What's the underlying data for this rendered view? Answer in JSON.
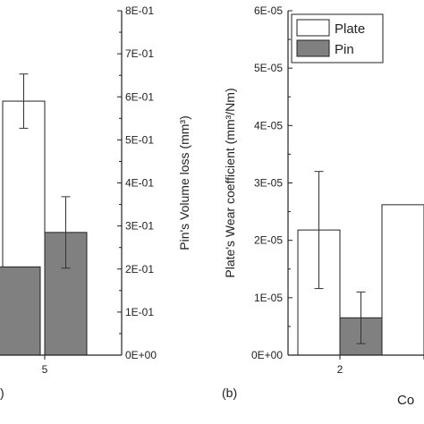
{
  "colors": {
    "plate": "#ffffff",
    "pin": "#808080",
    "axis": "#222222",
    "errbar": "#333333"
  },
  "chart_data": [
    {
      "type": "bar",
      "panel": "(a)",
      "panel_label_visible": ")",
      "categories": [
        "",
        "5"
      ],
      "series": [
        {
          "name": "Plate",
          "values": [
            null,
            0.59
          ],
          "errors": [
            null,
            0.063
          ]
        },
        {
          "name": "Pin",
          "values": [
            0.205,
            0.285
          ],
          "errors": [
            null,
            0.083
          ]
        }
      ],
      "ylabel": "Pin's Volume loss (mm³)",
      "ylim": [
        0,
        0.8
      ],
      "y_ticks": [
        "0E+00",
        "1E-01",
        "2E-01",
        "3E-01",
        "4E-01",
        "5E-01",
        "6E-01",
        "7E-01",
        "8E-01"
      ],
      "grid": false
    },
    {
      "type": "bar",
      "panel": "(b)",
      "categories": [
        "2",
        ""
      ],
      "series": [
        {
          "name": "Plate",
          "values": [
            2.18e-05,
            2.62e-05
          ],
          "errors": [
            1.02e-05,
            null
          ]
        },
        {
          "name": "Pin",
          "values": [
            6.5e-06,
            null
          ],
          "errors": [
            4.5e-06,
            null
          ]
        }
      ],
      "ylabel": "Plate's Wear coefficient (mm³/Nm)",
      "xlabel_partial": "Co",
      "ylim": [
        0,
        6e-05
      ],
      "y_ticks": [
        "0E+00",
        "1E-05",
        "2E-05",
        "3E-05",
        "4E-05",
        "5E-05",
        "6E-05"
      ],
      "legend": {
        "placement": "top-left",
        "entries": [
          "Plate",
          "Pin"
        ]
      },
      "grid": false
    }
  ]
}
